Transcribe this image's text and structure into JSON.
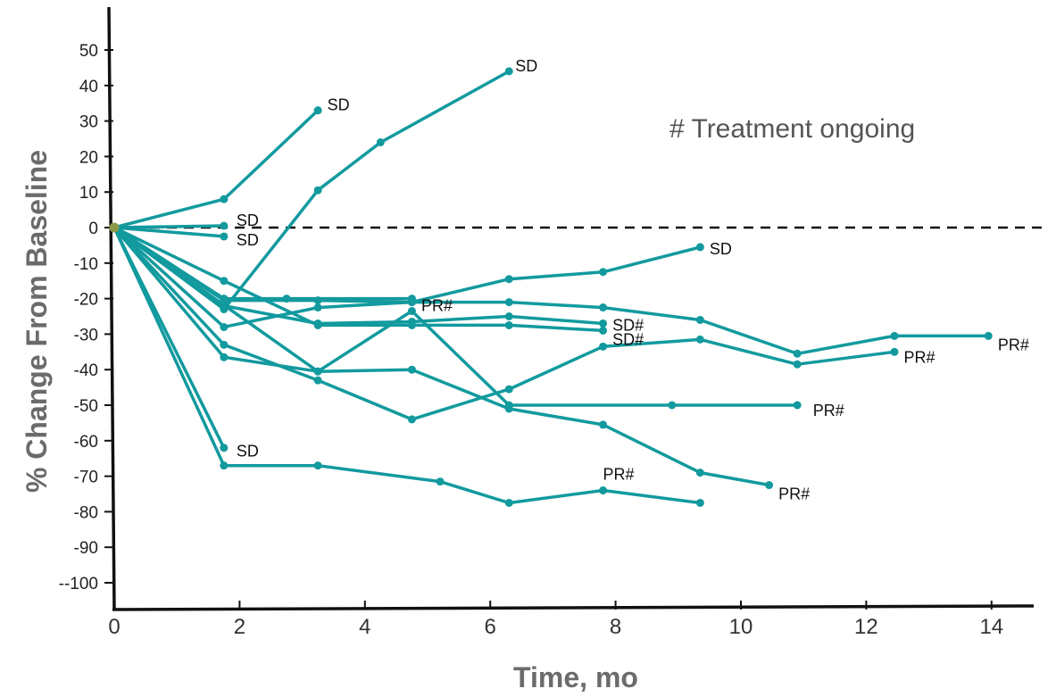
{
  "chart_data": {
    "type": "line",
    "title": "",
    "xlabel": "Time, mo",
    "ylabel": "% Change From Baseline",
    "xlim": [
      0,
      14.6
    ],
    "ylim": [
      -107,
      61
    ],
    "x_ticks": [
      0,
      2,
      4,
      6,
      8,
      10,
      12,
      14
    ],
    "x_tick_labels": [
      "0",
      "2",
      "4",
      "6",
      "8",
      "10",
      "12",
      "14"
    ],
    "y_ticks": [
      50,
      40,
      30,
      20,
      10,
      0,
      -10,
      -20,
      -30,
      -40,
      -50,
      -60,
      -70,
      -80,
      -90,
      -100
    ],
    "y_tick_labels": [
      "50",
      "40",
      "30",
      "20",
      "10",
      "0",
      "-10",
      "-20",
      "-30",
      "-40",
      "-50",
      "-60",
      "-70",
      "-80",
      "-90",
      "--100"
    ],
    "reference_line": 0,
    "grid": false,
    "line_color": "#129a9e",
    "origin_color": "#8a9a4a",
    "note": "# Treatment ongoing",
    "series": [
      {
        "x": [
          0,
          1.75,
          3.25
        ],
        "y": [
          0,
          8,
          33
        ],
        "label": "SD"
      },
      {
        "x": [
          0,
          1.75,
          3.25,
          4.25,
          6.3
        ],
        "y": [
          0,
          -23,
          10.5,
          24,
          44
        ],
        "label": "SD"
      },
      {
        "x": [
          0,
          1.75
        ],
        "y": [
          0,
          0.5
        ],
        "label": "SD"
      },
      {
        "x": [
          0,
          1.75
        ],
        "y": [
          0,
          -2.5
        ],
        "label": "SD"
      },
      {
        "x": [
          0,
          1.75,
          3.25,
          4.75,
          6.3,
          7.8,
          9.35
        ],
        "y": [
          0,
          -28,
          -22.5,
          -21,
          -14.5,
          -12.5,
          -5.5
        ],
        "label": "SD"
      },
      {
        "x": [
          0,
          1.75,
          2.75,
          4.75
        ],
        "y": [
          0,
          -20,
          -20,
          -20
        ],
        "label": "PR#"
      },
      {
        "x": [
          0,
          1.75,
          3.25,
          4.75,
          6.3,
          7.8
        ],
        "y": [
          0,
          -22,
          -27,
          -26.5,
          -25,
          -27
        ],
        "label": "SD#"
      },
      {
        "x": [
          0,
          1.75,
          3.25,
          4.75,
          6.3,
          7.8
        ],
        "y": [
          0,
          -15,
          -27.5,
          -27.5,
          -27.5,
          -29
        ],
        "label": "SD#"
      },
      {
        "x": [
          0,
          1.75,
          3.25,
          4.75,
          6.3,
          7.8,
          9.35,
          10.9,
          12.45
        ],
        "y": [
          0,
          -33,
          -43,
          -54,
          -45.5,
          -33.5,
          -31.5,
          -38.5,
          -35
        ],
        "label": "PR#"
      },
      {
        "x": [
          0,
          1.75,
          3.25,
          4.75,
          6.3,
          7.8,
          9.35,
          10.9,
          12.45,
          13.95
        ],
        "y": [
          0,
          -20.5,
          -20.5,
          -21,
          -21,
          -22.5,
          -26,
          -35.5,
          -30.5,
          -30.5
        ],
        "label": "PR#"
      },
      {
        "x": [
          0,
          1.75,
          3.25,
          4.75,
          6.3,
          7.8,
          9.35,
          10.45
        ],
        "y": [
          0,
          -36.5,
          -40.5,
          -40,
          -51,
          -55.5,
          -69,
          -72.5
        ],
        "label": "PR#"
      },
      {
        "x": [
          0,
          3.25,
          4.75,
          6.3,
          8.9,
          10.9
        ],
        "y": [
          0,
          -40.5,
          -23.5,
          -50,
          -50,
          -50
        ],
        "label": "PR#"
      },
      {
        "x": [
          0,
          1.75,
          3.25,
          5.2,
          6.3,
          7.8,
          9.35
        ],
        "y": [
          0,
          -67,
          -67,
          -71.5,
          -77.5,
          -74,
          -77.5
        ],
        "label": "PR#"
      },
      {
        "x": [
          0,
          1.75
        ],
        "y": [
          0,
          -62
        ],
        "label": "SD"
      }
    ],
    "annotations": [
      {
        "text": "SD",
        "x": 3.4,
        "y": 34.5
      },
      {
        "text": "SD",
        "x": 6.4,
        "y": 45.5
      },
      {
        "text": "SD",
        "x": 1.95,
        "y": 2
      },
      {
        "text": "SD",
        "x": 1.95,
        "y": -3.5
      },
      {
        "text": "SD",
        "x": 9.5,
        "y": -6
      },
      {
        "text": "PR#",
        "x": 4.9,
        "y": -22
      },
      {
        "text": "SD#",
        "x": 7.95,
        "y": -27.5
      },
      {
        "text": "SD#",
        "x": 7.95,
        "y": -31.5
      },
      {
        "text": "PR#",
        "x": 12.6,
        "y": -36.5
      },
      {
        "text": "PR#",
        "x": 14.1,
        "y": -33
      },
      {
        "text": "PR#",
        "x": 11.15,
        "y": -51.5
      },
      {
        "text": "PR#",
        "x": 10.6,
        "y": -75
      },
      {
        "text": "PR#",
        "x": 7.8,
        "y": -69.5
      },
      {
        "text": "SD",
        "x": 1.95,
        "y": -63
      }
    ]
  }
}
